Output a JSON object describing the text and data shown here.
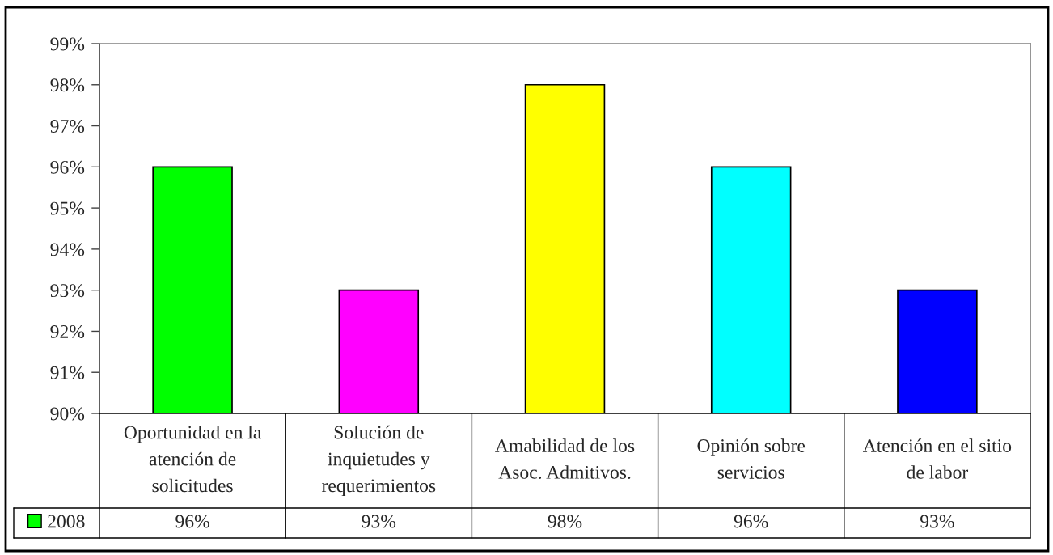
{
  "chart_data": {
    "type": "bar",
    "categories": [
      "Oportunidad en la atención de solicitudes",
      "Solución de inquietudes y requerimientos",
      "Amabilidad de los Asoc. Admitivos.",
      "Opinión sobre servicios",
      "Atención en el sitio de labor"
    ],
    "series": [
      {
        "name": "2008",
        "color": "#00ff00",
        "colors": [
          "#00ff00",
          "#ff00ff",
          "#ffff00",
          "#00ffff",
          "#0000ff"
        ],
        "values": [
          96,
          93,
          98,
          96,
          93
        ],
        "value_labels": [
          "96%",
          "93%",
          "98%",
          "96%",
          "93%"
        ]
      }
    ],
    "ylim": [
      90,
      99
    ],
    "yticks": [
      {
        "value": 90,
        "label": "90%"
      },
      {
        "value": 91,
        "label": "91%"
      },
      {
        "value": 92,
        "label": "92%"
      },
      {
        "value": 93,
        "label": "93%"
      },
      {
        "value": 94,
        "label": "94%"
      },
      {
        "value": 95,
        "label": "95%"
      },
      {
        "value": 96,
        "label": "96%"
      },
      {
        "value": 97,
        "label": "97%"
      },
      {
        "value": 98,
        "label": "98%"
      },
      {
        "value": 99,
        "label": "99%"
      }
    ],
    "grid": false,
    "legend": "bottom left"
  }
}
